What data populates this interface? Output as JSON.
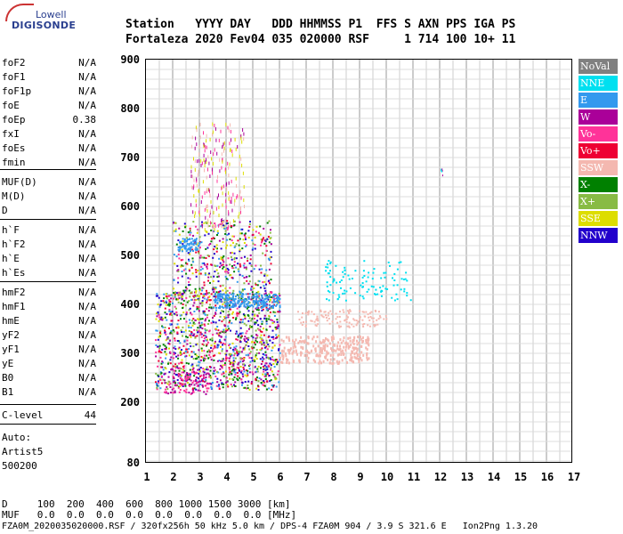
{
  "logo": {
    "line1": "Lowell",
    "line2": "DIGISONDE"
  },
  "header": {
    "row1": "Station   YYYY DAY   DDD HHMMSS P1  FFS S AXN PPS IGA PS",
    "row2": "Fortaleza 2020 Fev04 035 020000 RSF     1 714 100 10+ 11"
  },
  "params": [
    {
      "name": "foF2",
      "value": "N/A"
    },
    {
      "name": "foF1",
      "value": "N/A"
    },
    {
      "name": "foF1p",
      "value": "N/A"
    },
    {
      "name": "foE",
      "value": "N/A"
    },
    {
      "name": "foEp",
      "value": "0.38"
    },
    {
      "name": "fxI",
      "value": "N/A"
    },
    {
      "name": "foEs",
      "value": "N/A"
    },
    {
      "name": "fmin",
      "value": "N/A"
    },
    {
      "name": "MUF(D)",
      "value": "N/A"
    },
    {
      "name": "M(D)",
      "value": "N/A"
    },
    {
      "name": "D",
      "value": "N/A"
    },
    {
      "name": "h`F",
      "value": "N/A"
    },
    {
      "name": "h`F2",
      "value": "N/A"
    },
    {
      "name": "h`E",
      "value": "N/A"
    },
    {
      "name": "h`Es",
      "value": "N/A"
    },
    {
      "name": "hmF2",
      "value": "N/A"
    },
    {
      "name": "hmF1",
      "value": "N/A"
    },
    {
      "name": "hmE",
      "value": "N/A"
    },
    {
      "name": "yF2",
      "value": "N/A"
    },
    {
      "name": "yF1",
      "value": "N/A"
    },
    {
      "name": "yE",
      "value": "N/A"
    },
    {
      "name": "B0",
      "value": "N/A"
    },
    {
      "name": "B1",
      "value": "N/A"
    },
    {
      "name": "C-level",
      "value": "44"
    }
  ],
  "autoscaling": {
    "line1": "Auto:",
    "line2": "Artist5",
    "line3": "500200"
  },
  "plot": {
    "yticks": [
      "900",
      "800",
      "700",
      "600",
      "500",
      "400",
      "300",
      "200",
      "80"
    ],
    "xticks": [
      "1",
      "2",
      "3",
      "4",
      "5",
      "6",
      "7",
      "8",
      "9",
      "10",
      "11",
      "12",
      "13",
      "14",
      "15",
      "16",
      "17"
    ]
  },
  "legend": [
    {
      "label": "NoVal",
      "color": "#808080"
    },
    {
      "label": "NNE",
      "color": "#00e0f0"
    },
    {
      "label": "E",
      "color": "#3399ee"
    },
    {
      "label": "W",
      "color": "#aa0099"
    },
    {
      "label": "Vo-",
      "color": "#ff3399"
    },
    {
      "label": "Vo+",
      "color": "#ee0033"
    },
    {
      "label": "SSW",
      "color": "#f4b8b0"
    },
    {
      "label": "X-",
      "color": "#008000"
    },
    {
      "label": "X+",
      "color": "#88bb44"
    },
    {
      "label": "SSE",
      "color": "#dddd00"
    },
    {
      "label": "NNW",
      "color": "#2200cc"
    }
  ],
  "bottom": {
    "d_row": "D     100  200  400  600  800 1000 1500 3000 [km]",
    "muf_row": "MUF   0.0  0.0  0.0  0.0  0.0  0.0  0.0  0.0 [MHz]",
    "footer": "FZA0M_2020035020000.RSF / 320fx256h 50 kHz 5.0 km / DPS-4 FZA0M 904 / 3.9 S 321.6 E   Ion2Png 1.3.20"
  }
}
